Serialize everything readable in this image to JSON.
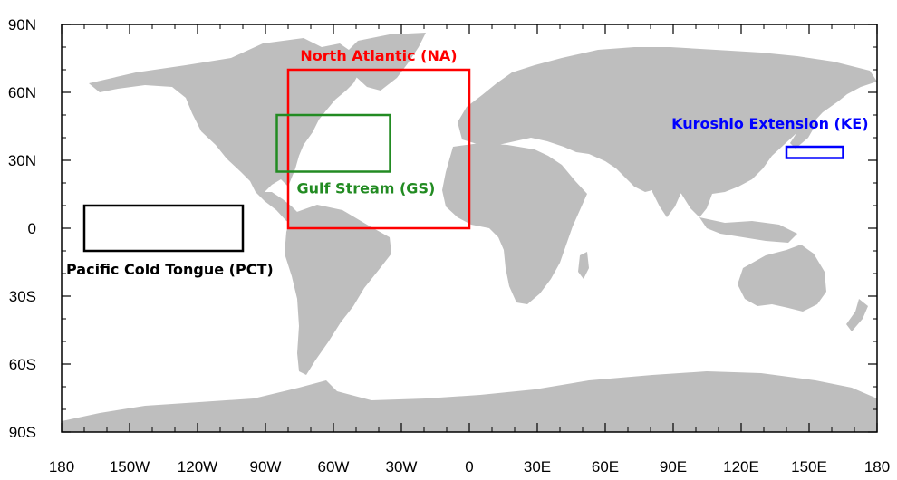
{
  "map": {
    "land_color": "#bebebe",
    "ocean_color": "#ffffff",
    "frame_color": "#000000",
    "lon_ticks": [
      "180",
      "150W",
      "120W",
      "90W",
      "60W",
      "30W",
      "0",
      "30E",
      "60E",
      "90E",
      "120E",
      "150E",
      "180"
    ],
    "lat_ticks": [
      "90N",
      "60N",
      "30N",
      "0",
      "30S",
      "60S",
      "90S"
    ]
  },
  "regions": [
    {
      "id": "na",
      "label": "North Atlantic (NA)",
      "color": "#ff0000",
      "lon": [
        -80,
        0
      ],
      "lat": [
        0,
        70
      ]
    },
    {
      "id": "gs",
      "label": "Gulf Stream (GS)",
      "color": "#228b22",
      "lon": [
        -85,
        -35
      ],
      "lat": [
        25,
        50
      ]
    },
    {
      "id": "ke",
      "label": "Kuroshio Extension (KE)",
      "color": "#0000ff",
      "lon": [
        140,
        165
      ],
      "lat": [
        31,
        36
      ]
    },
    {
      "id": "pct",
      "label": "Pacific Cold Tongue (PCT)",
      "color": "#000000",
      "lon": [
        -170,
        -100
      ],
      "lat": [
        -10,
        10
      ]
    }
  ]
}
